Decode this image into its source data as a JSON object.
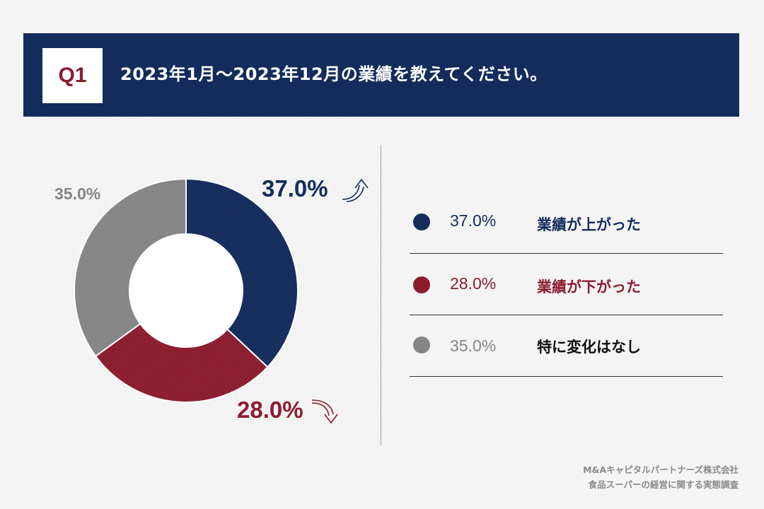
{
  "header": {
    "question_number": "Q1",
    "question_text": "2023年1月～2023年12月の業績を教えてください。"
  },
  "colors": {
    "header_bg": "#132c5c",
    "navy": "#132c5c",
    "crimson": "#8b1c2e",
    "gray": "#858585"
  },
  "chart_data": {
    "type": "pie",
    "style": "donut",
    "categories": [
      "業績が上がった",
      "業績が下がった",
      "特に変化はなし"
    ],
    "values": [
      37.0,
      28.0,
      35.0
    ],
    "value_labels": [
      "37.0%",
      "28.0%",
      "35.0%"
    ],
    "colors": [
      "#132c5c",
      "#8b1c2e",
      "#858585"
    ],
    "title": "2023年1月～2023年12月の業績を教えてください。",
    "start": "12 o'clock",
    "direction": "clockwise",
    "slice_label_icons": [
      "up-arrow-icon",
      "down-arrow-icon",
      ""
    ]
  },
  "legend": {
    "items": [
      {
        "value": "37.0%",
        "label": "業績が上がった",
        "color": "#132c5c",
        "text_color": "#132c5c"
      },
      {
        "value": "28.0%",
        "label": "業績が下がった",
        "color": "#8b1c2e",
        "text_color": "#8b1c2e"
      },
      {
        "value": "35.0%",
        "label": "特に変化はなし",
        "color": "#858585",
        "text_color": "#111111",
        "value_color": "#858585"
      }
    ]
  },
  "footer": {
    "company": "M&Aキャピタルパートナーズ株式会社",
    "survey": "食品スーパーの経営に関する実態調査"
  }
}
